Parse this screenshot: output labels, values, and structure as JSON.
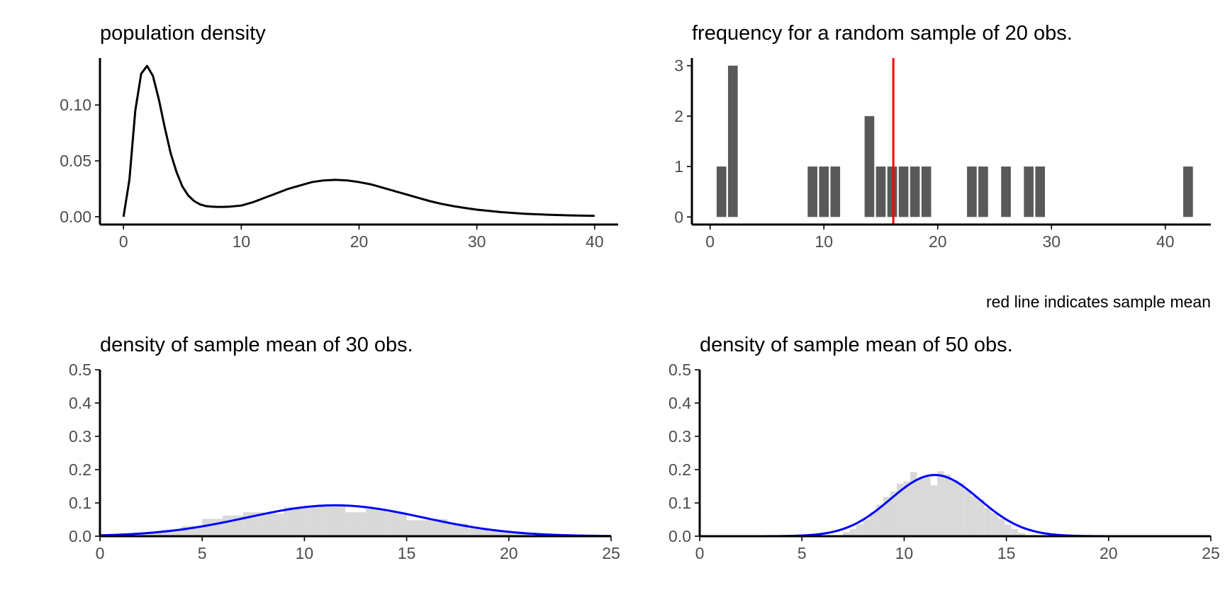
{
  "caption": "red line indicates sample mean",
  "colors": {
    "background": "#ffffff",
    "axis": "#000000",
    "tick_text": "#4d4d4d",
    "density_line": "#000000",
    "bar_fill": "#595959",
    "mean_line": "#ff0000",
    "hist_fill": "#d9d9d9",
    "normal_curve": "#0000ff"
  },
  "chart_data": [
    {
      "id": "pop",
      "type": "line",
      "title": "population density",
      "xlabel": "",
      "ylabel": "",
      "xlim": [
        -2,
        42
      ],
      "ylim": [
        -0.007,
        0.142
      ],
      "x_ticks": [
        0,
        10,
        20,
        30,
        40
      ],
      "x_tick_labels": [
        "0",
        "10",
        "20",
        "30",
        "40"
      ],
      "y_ticks": [
        0.0,
        0.05,
        0.1
      ],
      "y_tick_labels": [
        "0.00",
        "0.05",
        "0.10"
      ],
      "series": [
        {
          "x": [
            0,
            0.5,
            1,
            1.5,
            2,
            2.5,
            3,
            3.5,
            4,
            4.5,
            5,
            5.5,
            6,
            6.5,
            7,
            7.5,
            8,
            8.5,
            9,
            10,
            11,
            12,
            13,
            14,
            15,
            16,
            17,
            18,
            19,
            20,
            21,
            22,
            23,
            24,
            25,
            26,
            27,
            28,
            29,
            30,
            32,
            34,
            36,
            38,
            40
          ],
          "y": [
            0.0,
            0.033,
            0.095,
            0.128,
            0.135,
            0.126,
            0.105,
            0.08,
            0.057,
            0.04,
            0.027,
            0.019,
            0.014,
            0.011,
            0.0095,
            0.009,
            0.0088,
            0.0088,
            0.009,
            0.01,
            0.013,
            0.017,
            0.021,
            0.025,
            0.028,
            0.031,
            0.0325,
            0.033,
            0.0325,
            0.031,
            0.029,
            0.026,
            0.023,
            0.02,
            0.017,
            0.014,
            0.0115,
            0.0095,
            0.0078,
            0.0063,
            0.0042,
            0.0027,
            0.0018,
            0.0012,
            0.0008
          ]
        }
      ]
    },
    {
      "id": "freq",
      "type": "bar",
      "title": "frequency for a random sample of 20 obs.",
      "xlabel": "",
      "ylabel": "",
      "xlim": [
        -1.6,
        44
      ],
      "ylim": [
        -0.15,
        3.15
      ],
      "x_ticks": [
        0,
        10,
        20,
        30,
        40
      ],
      "x_tick_labels": [
        "0",
        "10",
        "20",
        "30",
        "40"
      ],
      "y_ticks": [
        0,
        1,
        2,
        3
      ],
      "y_tick_labels": [
        "0",
        "1",
        "2",
        "3"
      ],
      "bar_width": 0.85,
      "x": [
        1,
        2,
        9,
        10,
        11,
        14,
        15,
        16,
        17,
        18,
        19,
        23,
        24,
        26,
        28,
        29,
        42
      ],
      "values": [
        1,
        3,
        1,
        1,
        1,
        2,
        1,
        1,
        1,
        1,
        1,
        1,
        1,
        1,
        1,
        1,
        1
      ],
      "sample_mean": 16.1
    },
    {
      "id": "mean30",
      "type": "area",
      "title": "density of sample mean of 30 obs.",
      "xlabel": "",
      "ylabel": "",
      "xlim": [
        0,
        25
      ],
      "ylim": [
        0,
        0.5
      ],
      "x_ticks": [
        0,
        5,
        10,
        15,
        20,
        25
      ],
      "x_tick_labels": [
        "0",
        "5",
        "10",
        "15",
        "20",
        "25"
      ],
      "y_ticks": [
        0.0,
        0.1,
        0.2,
        0.3,
        0.4,
        0.5
      ],
      "y_tick_labels": [
        "0.0",
        "0.1",
        "0.2",
        "0.3",
        "0.4",
        "0.5"
      ],
      "histogram": {
        "bin_width": 1,
        "bins": [
          0,
          1,
          2,
          3,
          4,
          5,
          6,
          7,
          8,
          9,
          10,
          11,
          12,
          13,
          14,
          15,
          16,
          17,
          18,
          19,
          20,
          21,
          22,
          23,
          24
        ],
        "values": [
          0.002,
          0.006,
          0.012,
          0.02,
          0.03,
          0.052,
          0.062,
          0.072,
          0.068,
          0.088,
          0.092,
          0.092,
          0.072,
          0.082,
          0.073,
          0.048,
          0.052,
          0.038,
          0.024,
          0.015,
          0.008,
          0.004,
          0.002,
          0.001,
          0.0
        ]
      },
      "normal": {
        "mean": 11.5,
        "sd": 4.3
      }
    },
    {
      "id": "mean50",
      "type": "area",
      "title": "density of sample mean of 50 obs.",
      "xlabel": "",
      "ylabel": "",
      "xlim": [
        0,
        25
      ],
      "ylim": [
        0,
        0.5
      ],
      "x_ticks": [
        0,
        5,
        10,
        15,
        20,
        25
      ],
      "x_tick_labels": [
        "0",
        "5",
        "10",
        "15",
        "20",
        "25"
      ],
      "y_ticks": [
        0.0,
        0.1,
        0.2,
        0.3,
        0.4,
        0.5
      ],
      "y_tick_labels": [
        "0.0",
        "0.1",
        "0.2",
        "0.3",
        "0.4",
        "0.5"
      ],
      "histogram": {
        "bin_width": 0.33,
        "bins": [
          7.0,
          7.33,
          7.66,
          7.99,
          8.32,
          8.65,
          8.98,
          9.31,
          9.64,
          9.97,
          10.3,
          10.63,
          10.96,
          11.29,
          11.62,
          11.95,
          12.28,
          12.61,
          12.94,
          13.27,
          13.6,
          13.93,
          14.26,
          14.59,
          14.92,
          15.25,
          15.58
        ],
        "values": [
          0.012,
          0.022,
          0.035,
          0.05,
          0.072,
          0.095,
          0.118,
          0.135,
          0.158,
          0.165,
          0.193,
          0.175,
          0.178,
          0.153,
          0.195,
          0.185,
          0.17,
          0.16,
          0.14,
          0.12,
          0.11,
          0.085,
          0.07,
          0.052,
          0.035,
          0.022,
          0.01
        ]
      },
      "normal": {
        "mean": 11.5,
        "sd": 2.17
      }
    }
  ]
}
